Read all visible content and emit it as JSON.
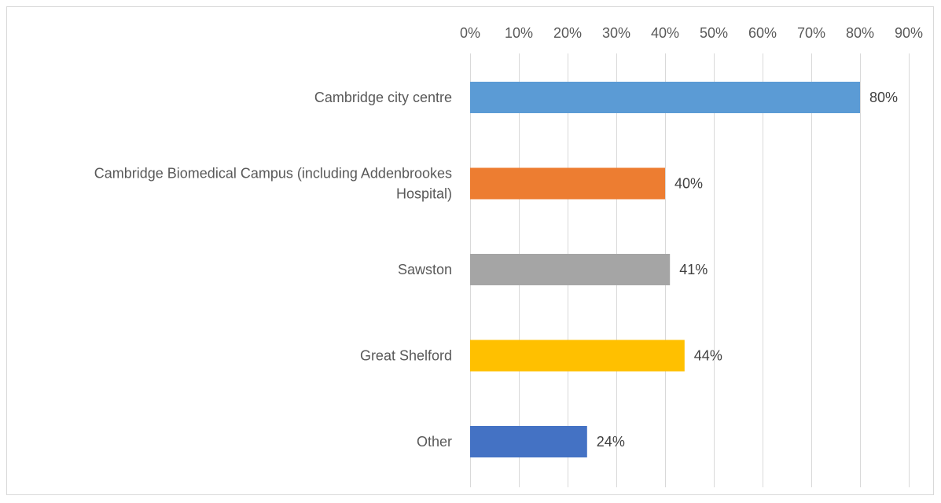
{
  "chart_data": {
    "type": "bar",
    "orientation": "horizontal",
    "title": "",
    "xlabel": "",
    "ylabel": "",
    "xlim": [
      0,
      90
    ],
    "x_ticks": [
      "0%",
      "10%",
      "20%",
      "30%",
      "40%",
      "50%",
      "60%",
      "70%",
      "80%",
      "90%"
    ],
    "x_axis_position": "top",
    "grid": true,
    "legend": "none",
    "categories": [
      [
        "Cambridge city centre"
      ],
      [
        "Cambridge Biomedical Campus (including Addenbrookes",
        "Hospital)"
      ],
      [
        "Sawston"
      ],
      [
        "Great Shelford"
      ],
      [
        "Other"
      ]
    ],
    "values": [
      80,
      40,
      41,
      44,
      24
    ],
    "data_labels": [
      "80%",
      "40%",
      "41%",
      "44%",
      "24%"
    ],
    "colors": [
      "#5b9bd5",
      "#ed7d31",
      "#a5a5a5",
      "#ffc000",
      "#4472c4"
    ]
  }
}
